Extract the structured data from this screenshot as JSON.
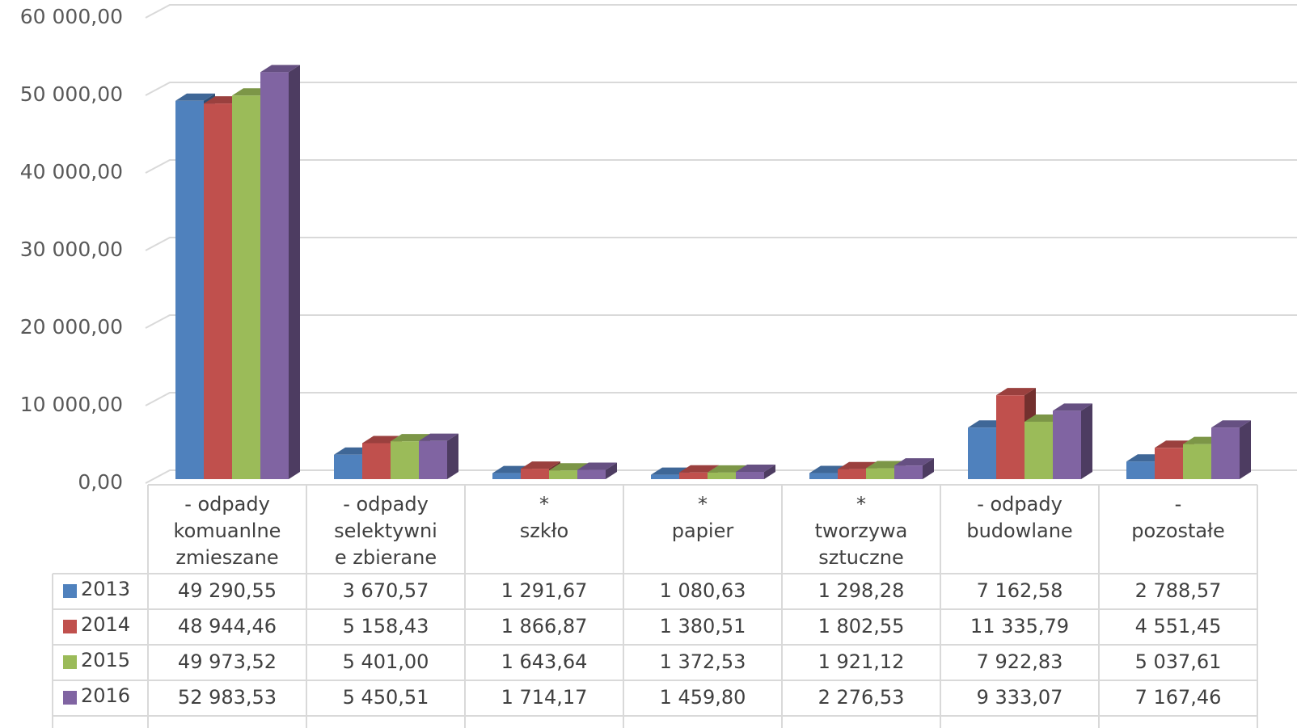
{
  "chart_data": {
    "type": "bar",
    "categories": [
      "- odpady\nkomuanlne\nzmieszane",
      "- odpady\nselektywni\ne zbierane",
      "*\nszkło",
      "*\npapier",
      "*\ntworzywa\nsztuczne",
      "- odpady\nbudowlane",
      "-\npozostałe"
    ],
    "series": [
      {
        "name": "2013",
        "color": "#4f81bd",
        "values": [
          49290.55,
          3670.57,
          1291.67,
          1080.63,
          1298.28,
          7162.58,
          2788.57
        ],
        "value_labels": [
          "49 290,55",
          "3 670,57",
          "1 291,67",
          "1 080,63",
          "1 298,28",
          "7 162,58",
          "2 788,57"
        ]
      },
      {
        "name": "2014",
        "color": "#c0504d",
        "values": [
          48944.46,
          5158.43,
          1866.87,
          1380.51,
          1802.55,
          11335.79,
          4551.45
        ],
        "value_labels": [
          "48 944,46",
          "5 158,43",
          "1 866,87",
          "1 380,51",
          "1 802,55",
          "11 335,79",
          "4 551,45"
        ]
      },
      {
        "name": "2015",
        "color": "#9bbb59",
        "values": [
          49973.52,
          5401.0,
          1643.64,
          1372.53,
          1921.12,
          7922.83,
          5037.61
        ],
        "value_labels": [
          "49 973,52",
          "5 401,00",
          "1 643,64",
          "1 372,53",
          "1 921,12",
          "7 922,83",
          "5 037,61"
        ]
      },
      {
        "name": "2016",
        "color": "#8064a2",
        "values": [
          52983.53,
          5450.51,
          1714.17,
          1459.8,
          2276.53,
          9333.07,
          7167.46
        ],
        "value_labels": [
          "52 983,53",
          "5 450,51",
          "1 714,17",
          "1 459,80",
          "2 276,53",
          "9 333,07",
          "7 167,46"
        ]
      }
    ],
    "ylim": [
      0,
      60000
    ],
    "yticks": [
      {
        "value": 0,
        "label": "0,00"
      },
      {
        "value": 10000,
        "label": "10 000,00"
      },
      {
        "value": 20000,
        "label": "20 000,00"
      },
      {
        "value": 30000,
        "label": "30 000,00"
      },
      {
        "value": 40000,
        "label": "40 000,00"
      },
      {
        "value": 50000,
        "label": "50 000,00"
      },
      {
        "value": 60000,
        "label": "60 000,00"
      }
    ],
    "grid": true
  }
}
